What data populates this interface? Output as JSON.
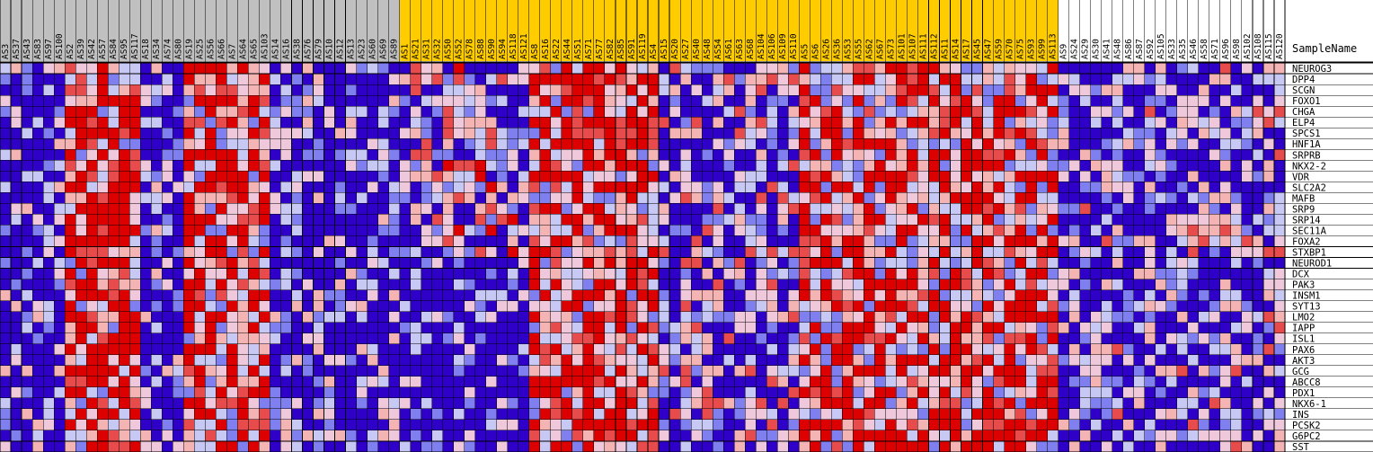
{
  "chart_data": {
    "type": "heatmap",
    "column_header_label": "SampleName",
    "header_colors": {
      "group_gray": "#c0c0c0",
      "group_gold": "#ffcc00"
    },
    "gridline_color": "#000000",
    "color_scale": {
      "low": "#2e00c8",
      "mid_low": "#7f7ff0",
      "light_low": "#c8c8f5",
      "mid": "#f0c8dc",
      "light_high": "#f5b4b4",
      "high": "#e84b4b",
      "max": "#dc0000"
    },
    "column_groups": [
      {
        "color": "gray",
        "samples": [
          "AS3",
          "AS37",
          "AS43",
          "AS83",
          "AS97",
          "AS100",
          "AS2",
          "AS39",
          "AS42",
          "AS57",
          "AS84",
          "AS95",
          "AS117",
          "AS18",
          "AS34",
          "AS74",
          "AS80",
          "AS19",
          "AS25",
          "AS56",
          "AS66",
          "AS7",
          "AS64",
          "AS65",
          "AS103",
          "AS14",
          "AS16",
          "AS38",
          "AS76",
          "AS79",
          "AS10",
          "AS12",
          "AS13",
          "AS23",
          "AS60",
          "AS69",
          "AS89"
        ]
      },
      {
        "color": "gold",
        "samples": [
          "AS1",
          "AS21",
          "AS31",
          "AS32",
          "AS50",
          "AS52",
          "AS78",
          "AS88",
          "AS90",
          "AS94",
          "AS118",
          "AS121",
          "AS8",
          "AS16",
          "AS22",
          "AS44",
          "AS51",
          "AS71",
          "AS77",
          "AS82",
          "AS85",
          "AS91",
          "AS119",
          "AS4",
          "AS15",
          "AS20",
          "AS27",
          "AS40",
          "AS48",
          "AS54",
          "AS61",
          "AS63",
          "AS68",
          "AS104",
          "AS106",
          "AS109",
          "AS110",
          "AS5",
          "AS6",
          "AS26",
          "AS36",
          "AS53",
          "AS55",
          "AS62",
          "AS67",
          "AS73",
          "AS101",
          "AS107",
          "AS111",
          "AS112",
          "AS11",
          "AS14",
          "AS17",
          "AS45",
          "AS47",
          "AS59",
          "AS70",
          "AS75",
          "AS93",
          "AS99",
          "AS113"
        ]
      },
      {
        "color": "white",
        "samples": [
          "AS9",
          "AS24",
          "AS29",
          "AS30",
          "AS41",
          "AS48",
          "AS86",
          "AS87",
          "AS92",
          "AS105",
          "AS33",
          "AS35",
          "AS46",
          "AS58",
          "AS71",
          "AS96",
          "AS98",
          "AS102",
          "AS108",
          "AS115",
          "AS120"
        ]
      }
    ],
    "genes": [
      "NEUROG3",
      "DPP4",
      "SCGN",
      "FOXO1",
      "CHGA",
      "ELP4",
      "SPCS1",
      "HNF1A",
      "SRPRB",
      "NKX2-2",
      "VDR",
      "SLC2A2",
      "MAFB",
      "SRP9",
      "SRP14",
      "SEC11A",
      "FOXA2",
      "STXBP1",
      "NEUROD1",
      "DCX",
      "PAK3",
      "INSM1",
      "SYT13",
      "LMO2",
      "IAPP",
      "ISL1",
      "PAX6",
      "AKT3",
      "GCG",
      "ABCC8",
      "PDX1",
      "NKX6-1",
      "INS",
      "PCSK2",
      "G6PC2",
      "SST"
    ]
  }
}
